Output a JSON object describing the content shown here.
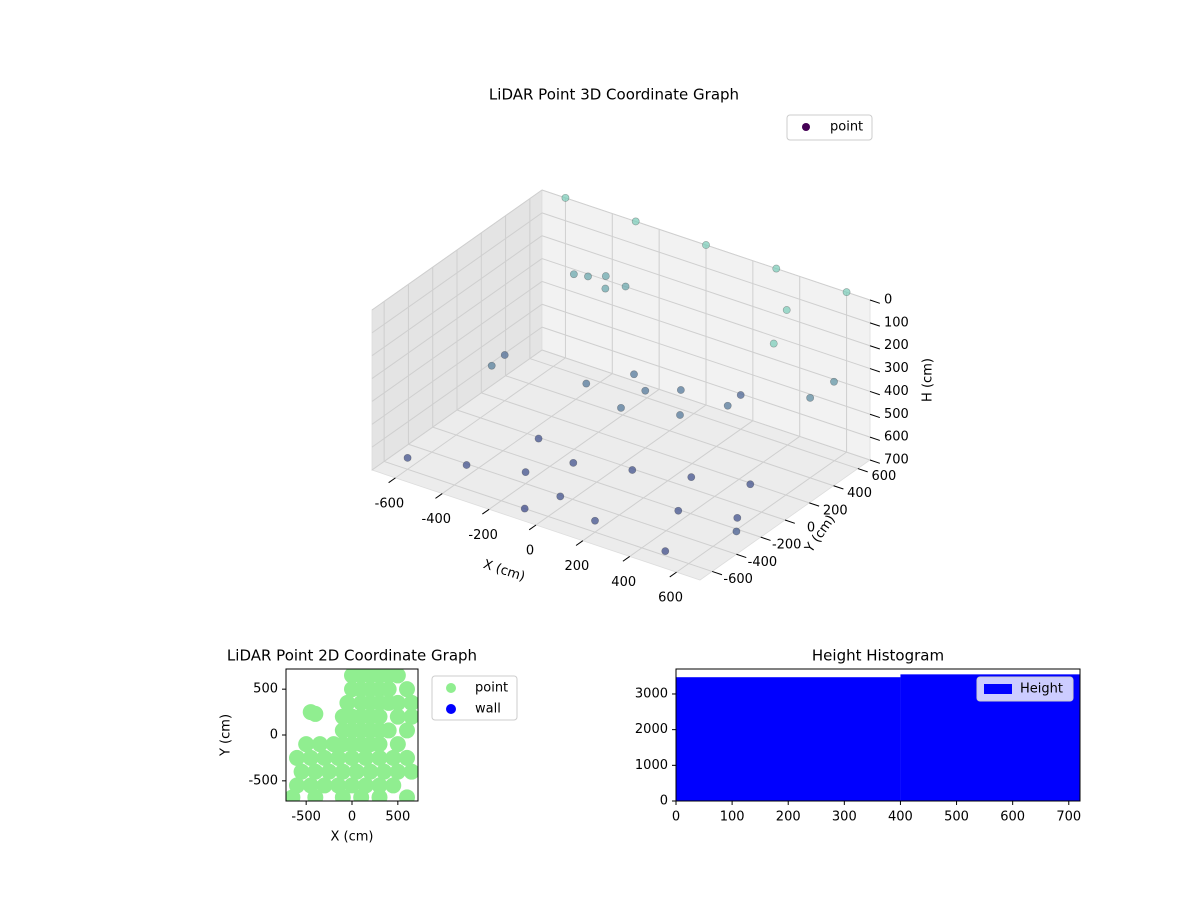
{
  "chart_data": [
    {
      "type": "scatter3d",
      "title": "LiDAR Point 3D Coordinate Graph",
      "xlabel": "X (cm)",
      "ylabel": "Y (cm)",
      "zlabel": "H (cm)",
      "xlim": [
        -700,
        700
      ],
      "ylim": [
        -700,
        700
      ],
      "zlim": [
        0,
        700
      ],
      "zinverted": true,
      "xticks": [
        -600,
        -400,
        -200,
        0,
        200,
        400,
        600
      ],
      "yticks": [
        -600,
        -400,
        -200,
        0,
        200,
        400,
        600
      ],
      "zticks": [
        0,
        100,
        200,
        300,
        400,
        500,
        600,
        700
      ],
      "colormap": [
        "#7fcdbb",
        "#3e4a89"
      ],
      "legend": "upper right",
      "series": [
        {
          "name": "point",
          "color": "#440154",
          "x": [
            -600,
            -300,
            0,
            300,
            600,
            500,
            600,
            -600,
            -400,
            -200,
            0,
            200,
            400,
            600,
            -300,
            -100,
            100,
            300,
            500,
            -200,
            0,
            200,
            100,
            -100,
            300,
            0,
            -400,
            -350,
            -300,
            -450,
            -250,
            600,
            650,
            -600,
            500,
            -500,
            200,
            700,
            -100
          ],
          "y": [
            700,
            700,
            700,
            700,
            700,
            400,
            100,
            -600,
            -500,
            -400,
            -500,
            -600,
            -300,
            -200,
            -100,
            -200,
            -100,
            0,
            100,
            100,
            200,
            100,
            300,
            300,
            300,
            0,
            500,
            550,
            450,
            480,
            520,
            400,
            500,
            200,
            -600,
            -100,
            600,
            -400,
            -600
          ],
          "z": [
            0,
            0,
            0,
            0,
            0,
            0,
            0,
            650,
            650,
            650,
            650,
            650,
            650,
            650,
            650,
            650,
            650,
            650,
            650,
            450,
            450,
            450,
            450,
            450,
            450,
            450,
            200,
            200,
            200,
            200,
            200,
            350,
            300,
            500,
            680,
            400,
            550,
            600,
            700
          ]
        }
      ]
    },
    {
      "type": "scatter",
      "title": "LiDAR Point 2D Coordinate Graph",
      "xlabel": "X (cm)",
      "ylabel": "Y (cm)",
      "xlim": [
        -720,
        720
      ],
      "ylim": [
        -720,
        720
      ],
      "xticks": [
        -500,
        0,
        500
      ],
      "yticks": [
        -500,
        0,
        500
      ],
      "legend": "outside right",
      "series": [
        {
          "name": "point",
          "color": "#90ee90",
          "x": [
            0,
            100,
            200,
            300,
            400,
            500,
            0,
            100,
            200,
            300,
            400,
            600,
            -50,
            100,
            200,
            300,
            400,
            500,
            650,
            -100,
            0,
            100,
            200,
            300,
            500,
            650,
            -100,
            0,
            100,
            200,
            300,
            400,
            600,
            -500,
            -350,
            -200,
            -100,
            0,
            100,
            200,
            300,
            500,
            -600,
            -450,
            -300,
            -150,
            0,
            150,
            300,
            450,
            600,
            -550,
            -400,
            -250,
            -100,
            50,
            200,
            350,
            500,
            650,
            -600,
            -450,
            -300,
            -150,
            0,
            150,
            300,
            450,
            -650,
            -400,
            -100,
            100,
            300,
            600,
            -450,
            -400
          ],
          "y": [
            650,
            650,
            650,
            650,
            650,
            650,
            500,
            500,
            500,
            500,
            500,
            500,
            350,
            350,
            350,
            350,
            350,
            350,
            350,
            200,
            200,
            200,
            200,
            200,
            200,
            200,
            50,
            50,
            50,
            50,
            50,
            50,
            50,
            -100,
            -100,
            -100,
            -100,
            -100,
            -100,
            -100,
            -100,
            -100,
            -250,
            -250,
            -250,
            -250,
            -250,
            -250,
            -250,
            -250,
            -250,
            -400,
            -400,
            -400,
            -400,
            -400,
            -400,
            -400,
            -400,
            -400,
            -550,
            -550,
            -550,
            -550,
            -550,
            -550,
            -550,
            -550,
            -680,
            -680,
            -680,
            -680,
            -680,
            -680,
            250,
            230
          ]
        },
        {
          "name": "wall",
          "color": "#0000ff",
          "x": [],
          "y": []
        }
      ]
    },
    {
      "type": "histogram",
      "title": "Height Histogram",
      "xlim": [
        0,
        720
      ],
      "ylim": [
        0,
        3700
      ],
      "xticks": [
        0,
        100,
        200,
        300,
        400,
        500,
        600,
        700
      ],
      "yticks": [
        0,
        1000,
        2000,
        3000
      ],
      "bins": [
        0,
        400,
        720
      ],
      "legend": "upper right",
      "series": [
        {
          "name": "Height",
          "color": "#0000ff",
          "values": [
            3470,
            3550
          ]
        }
      ]
    }
  ]
}
